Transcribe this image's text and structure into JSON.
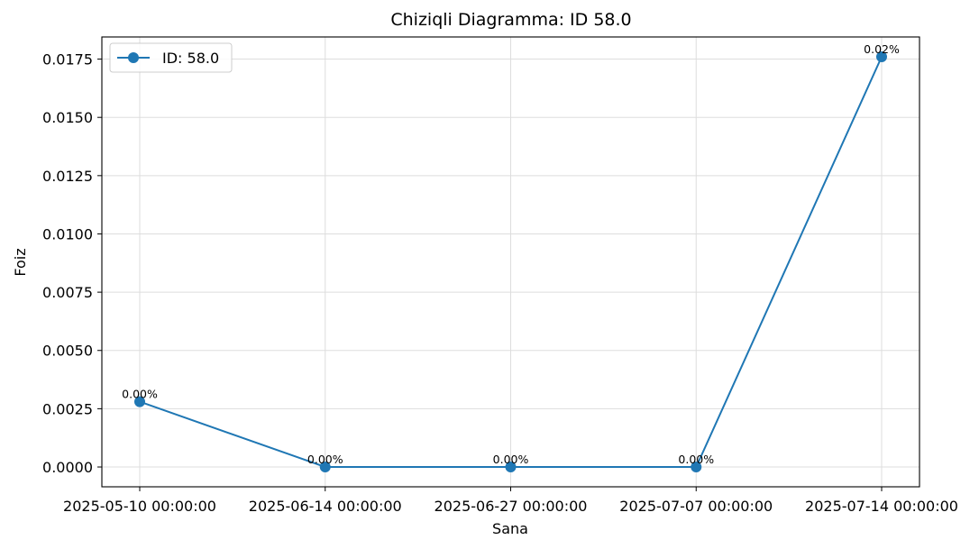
{
  "chart_data": {
    "type": "line",
    "title": "Chiziqli Diagramma: ID 58.0",
    "xlabel": "Sana",
    "ylabel": "Foiz",
    "categories": [
      "2025-05-10 00:00:00",
      "2025-06-14 00:00:00",
      "2025-06-27 00:00:00",
      "2025-07-07 00:00:00",
      "2025-07-14 00:00:00"
    ],
    "series": [
      {
        "name": "ID: 58.0",
        "values": [
          0.0028,
          0.0,
          0.0,
          0.0,
          0.0176
        ],
        "data_labels": [
          "0.00%",
          "0.00%",
          "0.00%",
          "0.00%",
          "0.02%"
        ],
        "color": "#1f77b4"
      }
    ],
    "ylim": [
      -0.00085,
      0.01845
    ],
    "yticks": [
      0.0,
      0.0025,
      0.005,
      0.0075,
      0.01,
      0.0125,
      0.015,
      0.0175
    ],
    "ytick_labels": [
      "0.0000",
      "0.0025",
      "0.0050",
      "0.0075",
      "0.0100",
      "0.0125",
      "0.0150",
      "0.0175"
    ],
    "grid": true,
    "legend_position": "top-left"
  }
}
